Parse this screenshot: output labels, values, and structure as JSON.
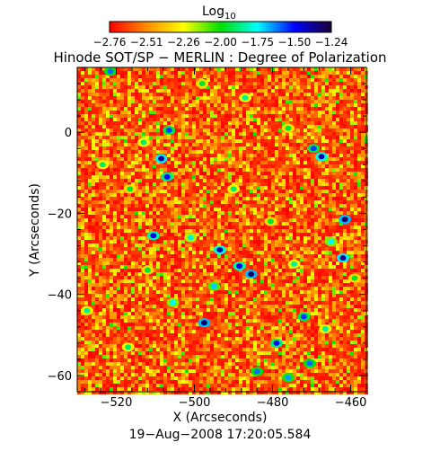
{
  "chart_data": {
    "type": "heatmap",
    "title": "Hinode SOT/SP − MERLIN : Degree of Polarization",
    "xlabel": "X (Arcseconds)",
    "ylabel": "Y (Arcseconds)",
    "xlim": [
      -530,
      -456
    ],
    "ylim": [
      -64,
      16
    ],
    "x_ticks": [
      -520,
      -500,
      -480,
      -460
    ],
    "x_tick_labels": [
      "−520",
      "−500",
      "−480",
      "−460"
    ],
    "y_ticks": [
      0,
      -20,
      -40,
      -60
    ],
    "y_tick_labels": [
      "0",
      "−20",
      "−40",
      "−60"
    ],
    "colorbar": {
      "label": "Log",
      "label_sub": "10",
      "range": [
        -2.76,
        -1.24
      ],
      "tick_labels": [
        "−2.76",
        "−2.51",
        "−2.26",
        "−2.00",
        "−1.75",
        "−1.50",
        "−1.24"
      ],
      "colors": [
        "#ff0000",
        "#ff8c00",
        "#ffff00",
        "#00e000",
        "#00ffff",
        "#0000ff",
        "#1a0033"
      ]
    },
    "timestamp": "19−Aug−2008 17:20:05.584",
    "patches": [
      {
        "x": -461.5,
        "y": -21.5,
        "value": -1.3
      },
      {
        "x": -462.0,
        "y": -31.0,
        "value": -1.35
      },
      {
        "x": -465.0,
        "y": -27.0,
        "value": -1.75
      },
      {
        "x": -467.5,
        "y": -6.0,
        "value": -1.4
      },
      {
        "x": -469.5,
        "y": -4.0,
        "value": -1.55
      },
      {
        "x": -497.5,
        "y": -47.0,
        "value": -1.3
      },
      {
        "x": -485.5,
        "y": -35.0,
        "value": -1.3
      },
      {
        "x": -488.5,
        "y": -33.0,
        "value": -1.45
      },
      {
        "x": -493.5,
        "y": -29.0,
        "value": -1.4
      },
      {
        "x": -508.5,
        "y": -6.5,
        "value": -1.35
      },
      {
        "x": -507.0,
        "y": -11.0,
        "value": -1.5
      },
      {
        "x": -510.5,
        "y": -25.5,
        "value": -1.45
      },
      {
        "x": -521.5,
        "y": 15.0,
        "value": -1.6
      },
      {
        "x": -506.5,
        "y": 0.5,
        "value": -1.55
      },
      {
        "x": -470.5,
        "y": -57.0,
        "value": -1.6
      },
      {
        "x": -472.0,
        "y": -45.5,
        "value": -1.55
      },
      {
        "x": -479.0,
        "y": -52.0,
        "value": -1.5
      },
      {
        "x": -484.0,
        "y": -59.0,
        "value": -1.6
      },
      {
        "x": -476.0,
        "y": -60.5,
        "value": -1.65
      },
      {
        "x": -495.0,
        "y": -38.0,
        "value": -1.7
      },
      {
        "x": -505.5,
        "y": -42.0,
        "value": -1.75
      },
      {
        "x": -501.0,
        "y": -26.0,
        "value": -1.8
      },
      {
        "x": -513.0,
        "y": -2.5,
        "value": -1.9
      },
      {
        "x": -487.0,
        "y": 8.5,
        "value": -1.85
      },
      {
        "x": -476.0,
        "y": 1.0,
        "value": -1.95
      },
      {
        "x": -523.5,
        "y": -8.0,
        "value": -1.9
      },
      {
        "x": -516.5,
        "y": -14.0,
        "value": -1.95
      },
      {
        "x": -527.5,
        "y": -44.0,
        "value": -1.85
      },
      {
        "x": -517.0,
        "y": -53.0,
        "value": -1.9
      },
      {
        "x": -490.0,
        "y": -14.0,
        "value": -1.9
      },
      {
        "x": -480.5,
        "y": -22.0,
        "value": -1.95
      },
      {
        "x": -474.5,
        "y": -32.5,
        "value": -1.85
      },
      {
        "x": -466.5,
        "y": -48.5,
        "value": -1.85
      },
      {
        "x": -459.0,
        "y": -36.0,
        "value": -1.95
      },
      {
        "x": -498.0,
        "y": 12.0,
        "value": -1.95
      },
      {
        "x": -512.0,
        "y": -34.0,
        "value": -1.95
      }
    ]
  }
}
